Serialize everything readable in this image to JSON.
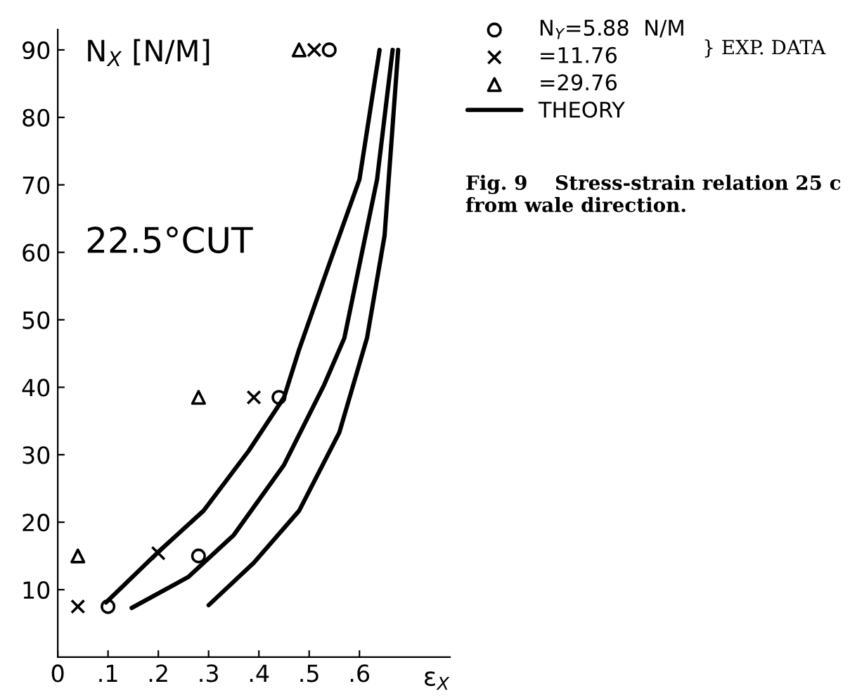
{
  "chart_data": {
    "type": "scatter",
    "xlabel": "ε$_{X}$",
    "ylabel": "N$_{X}$ [N/M]",
    "xlim": [
      0,
      0.78
    ],
    "ylim": [
      0,
      93
    ],
    "xticks": [
      {
        "value": 0,
        "label": "0"
      },
      {
        "value": 0.1,
        "label": ".1"
      },
      {
        "value": 0.2,
        "label": ".2"
      },
      {
        "value": 0.3,
        "label": ".3"
      },
      {
        "value": 0.4,
        "label": ".4"
      },
      {
        "value": 0.5,
        "label": ".5"
      },
      {
        "value": 0.6,
        "label": ".6"
      }
    ],
    "yticks": [
      10,
      20,
      30,
      40,
      50,
      60,
      70,
      80,
      90
    ],
    "grid": false,
    "legend": "top right",
    "series": [
      {
        "name": "N$_{Y}$=5.88  N/M",
        "color": "#000000",
        "marker": "circle",
        "x": [
          0.1,
          0.28,
          0.44,
          0.54
        ],
        "values": [
          7.5,
          15,
          38.5,
          90
        ]
      },
      {
        "name": "=11.76",
        "color": "#000000",
        "marker": "cross",
        "x": [
          0.04,
          0.2,
          0.39,
          0.51
        ],
        "values": [
          7.5,
          15.4,
          38.5,
          90
        ]
      },
      {
        "name": "=29.76",
        "color": "#000000",
        "marker": "triangle",
        "x": [
          0.04,
          0.28,
          0.48
        ],
        "values": [
          15,
          38.5,
          90
        ]
      },
      {
        "name": "THEORY",
        "type": "line",
        "color": "#000000",
        "line_style": "solid",
        "marker": "none",
        "x": [
          0.096,
          0.2,
          0.29,
          0.38,
          0.45,
          0.48,
          0.54,
          0.6,
          0.64
        ],
        "values": [
          8.1,
          15.6,
          21.7,
          30.6,
          38.5,
          45.6,
          58.3,
          70.8,
          90
        ]
      },
      {
        "type": "line",
        "color": "#000000",
        "line_style": "solid",
        "marker": "none",
        "x": [
          0.147,
          0.26,
          0.35,
          0.45,
          0.53,
          0.57,
          0.635,
          0.666
        ],
        "values": [
          7.3,
          11.9,
          18.1,
          28.5,
          40.4,
          47.3,
          70.8,
          90
        ]
      },
      {
        "type": "line",
        "color": "#000000",
        "line_style": "solid",
        "marker": "none",
        "x": [
          0.3,
          0.39,
          0.48,
          0.56,
          0.615,
          0.65,
          0.677
        ],
        "values": [
          7.7,
          14,
          21.7,
          33.3,
          47.3,
          62.5,
          90
        ]
      }
    ],
    "annotations": [
      "22.5°CUT",
      "} EXP. DATA",
      "Fig. 9    Stress-strain relation 25 c\nfrom wale direction."
    ]
  }
}
